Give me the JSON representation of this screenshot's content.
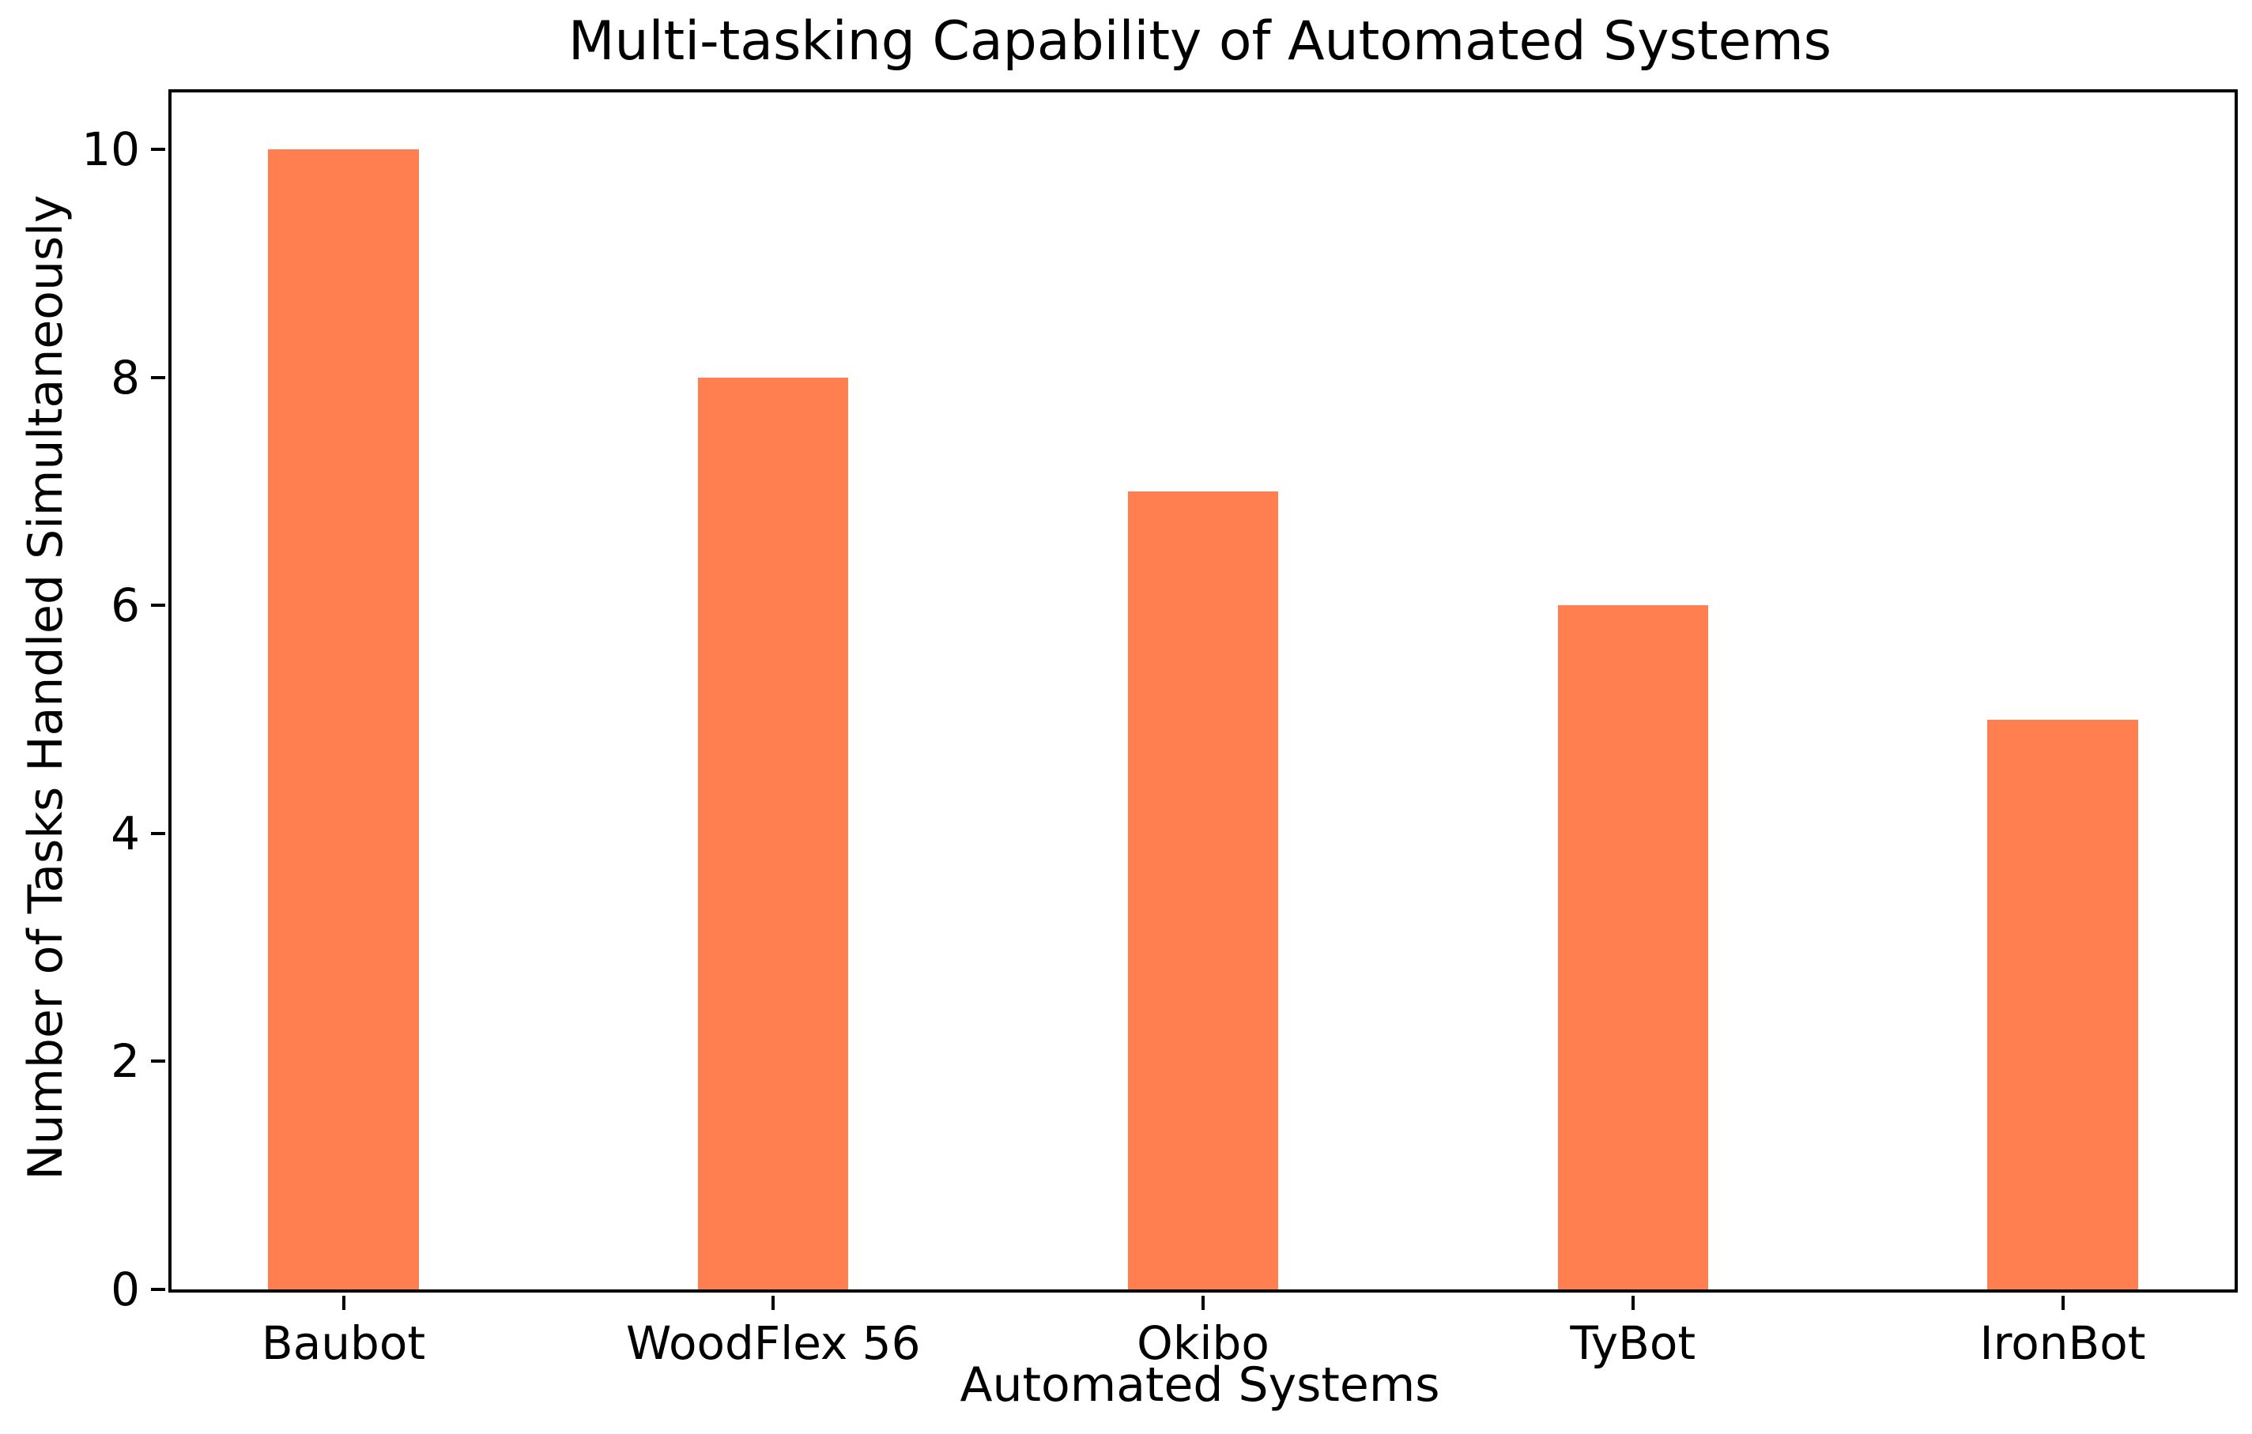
{
  "chart_data": {
    "type": "bar",
    "title": "Multi-tasking Capability of Automated Systems",
    "xlabel": "Automated Systems",
    "ylabel": "Number of Tasks Handled Simultaneously",
    "categories": [
      "Baubot",
      "WoodFlex 56",
      "Okibo",
      "TyBot",
      "IronBot"
    ],
    "values": [
      10,
      8,
      7,
      6,
      5
    ],
    "yticks": [
      0,
      2,
      4,
      6,
      8,
      10
    ],
    "ylim": [
      0,
      10.5
    ],
    "xlim": [
      -0.4,
      4.4
    ],
    "bar_width": 0.35,
    "bar_color": "#FF7F50",
    "axis_color": "#000000",
    "background_color": "#ffffff",
    "grid": false,
    "legend_position": "none"
  }
}
